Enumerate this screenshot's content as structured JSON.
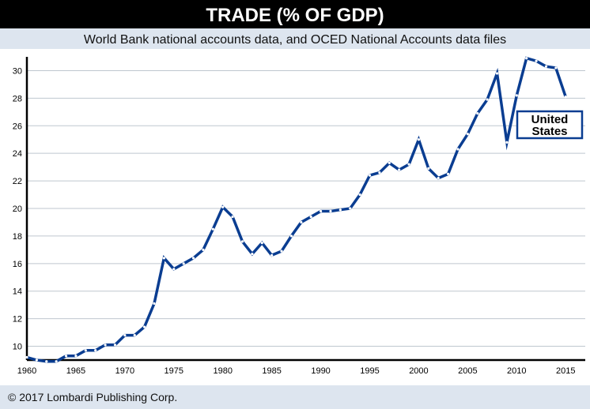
{
  "header": {
    "title": "TRADE (% OF GDP)",
    "subtitle": "World Bank national accounts data, and OCED National Accounts data files"
  },
  "footer": {
    "copyright": "© 2017 Lombardi Publishing Corp."
  },
  "colors": {
    "title_bar": "#000000",
    "title_text": "#ffffff",
    "subtitle_bar": "#dde5ef",
    "plot_background": "#ffffff",
    "gridline": "#bfc7cf",
    "series_line": "#0a3d91",
    "marker_fill": "#ffffff",
    "footer_bar": "#dde5ef"
  },
  "chart_data": {
    "type": "line",
    "title": "TRADE (% OF GDP)",
    "subtitle": "World Bank national accounts data, and OCED National Accounts data files",
    "xlim": [
      1960,
      2017
    ],
    "ylim": [
      9,
      31
    ],
    "x_ticks": [
      1960,
      1965,
      1970,
      1975,
      1980,
      1985,
      1990,
      1995,
      2000,
      2005,
      2010,
      2015
    ],
    "y_ticks": [
      10,
      12,
      14,
      16,
      18,
      20,
      22,
      24,
      26,
      28,
      30
    ],
    "grid": "horizontal",
    "series": [
      {
        "name": "United States",
        "x": [
          1960,
          1961,
          1962,
          1963,
          1964,
          1965,
          1966,
          1967,
          1968,
          1969,
          1970,
          1971,
          1972,
          1973,
          1974,
          1975,
          1976,
          1977,
          1978,
          1979,
          1980,
          1981,
          1982,
          1983,
          1984,
          1985,
          1986,
          1987,
          1988,
          1989,
          1990,
          1991,
          1992,
          1993,
          1994,
          1995,
          1996,
          1997,
          1998,
          1999,
          2000,
          2001,
          2002,
          2003,
          2004,
          2005,
          2006,
          2007,
          2008,
          2009,
          2010,
          2011,
          2012,
          2013,
          2014,
          2015
        ],
        "values": [
          9.2,
          9.0,
          8.9,
          8.9,
          9.3,
          9.3,
          9.7,
          9.7,
          10.1,
          10.1,
          10.8,
          10.8,
          11.4,
          13.1,
          16.4,
          15.6,
          16.0,
          16.4,
          17.0,
          18.5,
          20.1,
          19.4,
          17.6,
          16.7,
          17.5,
          16.6,
          16.9,
          18.0,
          19.0,
          19.4,
          19.8,
          19.8,
          19.9,
          20.0,
          21.0,
          22.4,
          22.6,
          23.3,
          22.8,
          23.2,
          25.0,
          22.9,
          22.2,
          22.5,
          24.3,
          25.4,
          26.9,
          27.9,
          29.8,
          24.8,
          28.2,
          30.9,
          30.7,
          30.3,
          30.2,
          28.1
        ]
      }
    ],
    "legend": {
      "label": "United States",
      "placement": "right, beside the end of the line"
    }
  }
}
